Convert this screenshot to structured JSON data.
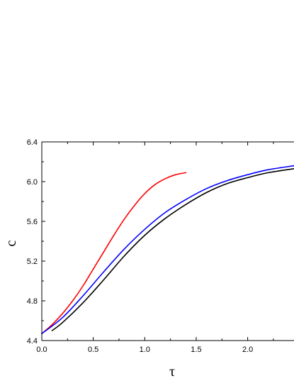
{
  "chart_data": {
    "type": "line",
    "title": "",
    "xlabel": "τ",
    "ylabel": "c",
    "xlim": [
      0.0,
      2.45
    ],
    "ylim": [
      4.4,
      6.4
    ],
    "x_ticks": [
      0.0,
      0.5,
      1.0,
      1.5,
      2.0
    ],
    "x_tick_labels": [
      "0.0",
      "0.5",
      "1.0",
      "1.5",
      "2.0"
    ],
    "y_ticks": [
      4.4,
      4.8,
      5.2,
      5.6,
      6.0,
      6.4
    ],
    "y_tick_labels": [
      "4.4",
      "4.8",
      "5.2",
      "5.6",
      "6.0",
      "6.4"
    ],
    "grid": false,
    "legend": "none",
    "series": [
      {
        "color": "#ff0000",
        "x": [
          0.0,
          0.1,
          0.2,
          0.3,
          0.4,
          0.5,
          0.6,
          0.7,
          0.8,
          0.9,
          1.0,
          1.1,
          1.2,
          1.3,
          1.4
        ],
        "y": [
          4.47,
          4.56,
          4.67,
          4.8,
          4.95,
          5.12,
          5.29,
          5.46,
          5.62,
          5.76,
          5.88,
          5.97,
          6.03,
          6.07,
          6.09
        ]
      },
      {
        "color": "#0000ff",
        "x": [
          0.0,
          0.2,
          0.4,
          0.6,
          0.8,
          1.0,
          1.2,
          1.4,
          1.6,
          1.8,
          2.0,
          2.2,
          2.45
        ],
        "y": [
          4.47,
          4.63,
          4.85,
          5.09,
          5.32,
          5.52,
          5.69,
          5.82,
          5.93,
          6.01,
          6.07,
          6.12,
          6.16
        ]
      },
      {
        "color": "#000000",
        "x": [
          0.1,
          0.2,
          0.4,
          0.6,
          0.8,
          1.0,
          1.2,
          1.4,
          1.6,
          1.8,
          2.0,
          2.2,
          2.45
        ],
        "y": [
          4.5,
          4.58,
          4.78,
          5.01,
          5.25,
          5.46,
          5.63,
          5.77,
          5.89,
          5.98,
          6.04,
          6.09,
          6.13
        ]
      }
    ]
  }
}
